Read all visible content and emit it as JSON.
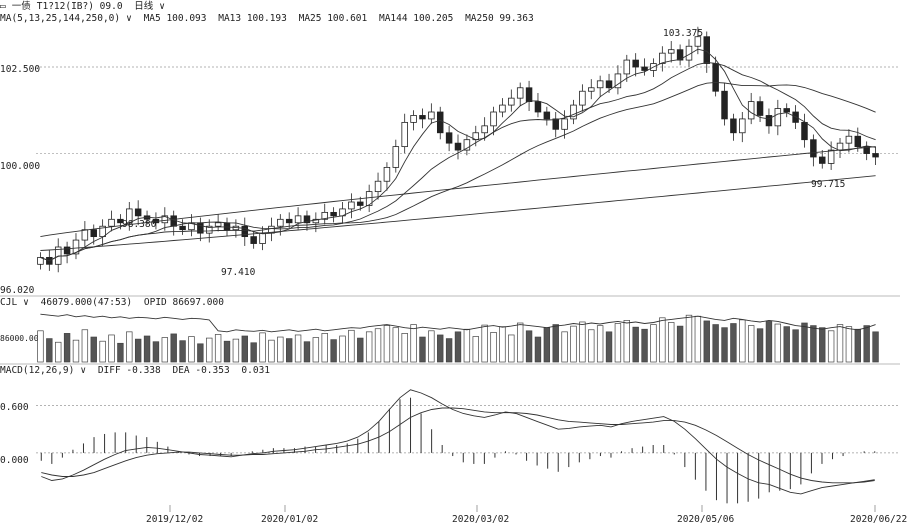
{
  "window": {
    "icon_glyph": "▭",
    "instrument": "一债",
    "instrument_detail": "T1?12(IB?) 09.0",
    "period_label": "日线",
    "chevron_glyph": "∨"
  },
  "main_header": {
    "ma_formula": "MA(5,13,25,144,250,0)",
    "ma5": "MA5 100.093",
    "ma13": "MA13 100.193",
    "ma25": "MA25 100.601",
    "ma144": "MA144 100.205",
    "ma250": "MA250 99.363"
  },
  "vol_header": {
    "name": "CJL",
    "cjl": "46079.000(47:53)",
    "opid": "OPID 86697.000"
  },
  "macd_header": {
    "name": "MACD(12,26,9)",
    "diff": "DIFF -0.338",
    "dea": "DEA -0.353",
    "macd": "0.031"
  },
  "axis_labels": {
    "main_high": "102.500",
    "main_mid": "100.000",
    "main_low": "96.020",
    "vol_mark": "86000.000",
    "macd_top": "0.600",
    "macd_zero": "0.000"
  },
  "annotations": {
    "peak": "103.375",
    "local_high": "98.380",
    "local_low_1": "97.410",
    "local_low_2": "99.715"
  },
  "colors": {
    "grid": "#9a9a9a",
    "candle": "#222222",
    "ma_line": "#333333",
    "text": "#222222"
  },
  "chart_data": {
    "type": "candlestick",
    "x_ticks": [
      "2019/12/02",
      "2020/01/02",
      "2020/03/02",
      "2020/05/06",
      "2020/06/22"
    ],
    "price_ylim": [
      96.0,
      103.8
    ],
    "price_gridlines": [
      102.5,
      100.0
    ],
    "macd_gridlines": [
      0.6,
      0.0
    ],
    "close_path": [
      97.0,
      96.8,
      97.3,
      97.1,
      97.5,
      97.8,
      97.6,
      97.9,
      98.1,
      98.0,
      98.4,
      98.2,
      98.1,
      98.0,
      98.2,
      97.9,
      97.8,
      98.0,
      97.7,
      97.9,
      98.0,
      97.8,
      97.9,
      97.6,
      97.4,
      97.7,
      97.9,
      98.1,
      98.0,
      98.2,
      98.0,
      98.1,
      98.3,
      98.2,
      98.4,
      98.6,
      98.5,
      98.9,
      99.2,
      99.6,
      100.2,
      100.9,
      101.1,
      101.0,
      101.2,
      100.6,
      100.3,
      100.1,
      100.4,
      100.6,
      100.8,
      101.2,
      101.4,
      101.6,
      101.9,
      101.5,
      101.2,
      101.0,
      100.7,
      101.0,
      101.4,
      101.8,
      101.9,
      102.1,
      101.9,
      102.3,
      102.7,
      102.5,
      102.4,
      102.6,
      102.9,
      103.0,
      102.7,
      103.1,
      103.375,
      102.6,
      101.8,
      101.0,
      100.6,
      101.0,
      101.5,
      101.1,
      100.8,
      101.3,
      101.2,
      100.9,
      100.4,
      99.9,
      99.715,
      100.1,
      100.3,
      100.5,
      100.2,
      100.0,
      99.9
    ],
    "annotated_points": [
      {
        "label": "98.380",
        "value": 98.38
      },
      {
        "label": "97.410",
        "value": 97.41
      },
      {
        "label": "103.375",
        "value": 103.375
      },
      {
        "label": "99.715",
        "value": 99.715
      }
    ],
    "volume_series": [
      60,
      45,
      38,
      55,
      42,
      62,
      48,
      40,
      52,
      36,
      58,
      44,
      50,
      39,
      47,
      54,
      41,
      49,
      35,
      46,
      53,
      40,
      44,
      50,
      37,
      56,
      42,
      48,
      45,
      52,
      39,
      47,
      55,
      43,
      50,
      61,
      46,
      58,
      64,
      70,
      66,
      55,
      72,
      48,
      60,
      52,
      45,
      58,
      63,
      49,
      71,
      57,
      68,
      52,
      75,
      60,
      48,
      66,
      72,
      58,
      69,
      77,
      62,
      70,
      58,
      74,
      80,
      67,
      63,
      72,
      85,
      76,
      69,
      90,
      88,
      79,
      72,
      66,
      74,
      81,
      70,
      64,
      78,
      73,
      68,
      62,
      75,
      70,
      66,
      60,
      72,
      68,
      63,
      70,
      58
    ],
    "oi_series": [
      92,
      90,
      88,
      91,
      87,
      89,
      86,
      88,
      85,
      87,
      84,
      86,
      85,
      83,
      86,
      84,
      82,
      84,
      83,
      81,
      60,
      58,
      62,
      60,
      59,
      61,
      58,
      60,
      62,
      59,
      61,
      63,
      60,
      62,
      64,
      66,
      65,
      68,
      70,
      72,
      69,
      66,
      64,
      67,
      65,
      63,
      66,
      64,
      62,
      65,
      68,
      70,
      67,
      69,
      72,
      70,
      68,
      66,
      69,
      71,
      74,
      72,
      75,
      73,
      76,
      78,
      75,
      77,
      74,
      76,
      80,
      82,
      84,
      86,
      88,
      85,
      82,
      80,
      84,
      82,
      79,
      77,
      80,
      78,
      74,
      70,
      68,
      65,
      63,
      66,
      68,
      64,
      62,
      66,
      72
    ],
    "macd_diff": [
      -0.3,
      -0.35,
      -0.33,
      -0.28,
      -0.22,
      -0.15,
      -0.08,
      -0.02,
      0.03,
      0.05,
      0.07,
      0.06,
      0.04,
      0.02,
      0.0,
      -0.02,
      -0.03,
      -0.04,
      -0.05,
      -0.03,
      -0.01,
      0.0,
      0.02,
      0.03,
      0.04,
      0.06,
      0.08,
      0.1,
      0.12,
      0.15,
      0.2,
      0.28,
      0.4,
      0.55,
      0.7,
      0.8,
      0.76,
      0.7,
      0.62,
      0.55,
      0.5,
      0.47,
      0.45,
      0.48,
      0.52,
      0.5,
      0.45,
      0.4,
      0.35,
      0.3,
      0.31,
      0.33,
      0.34,
      0.35,
      0.33,
      0.37,
      0.4,
      0.42,
      0.44,
      0.46,
      0.4,
      0.3,
      0.18,
      0.05,
      -0.08,
      -0.18,
      -0.26,
      -0.33,
      -0.38,
      -0.4,
      -0.45,
      -0.5,
      -0.52,
      -0.48,
      -0.44,
      -0.42,
      -0.4,
      -0.38,
      -0.36,
      -0.34
    ],
    "macd_dea": [
      -0.25,
      -0.28,
      -0.3,
      -0.3,
      -0.28,
      -0.25,
      -0.2,
      -0.15,
      -0.1,
      -0.06,
      -0.03,
      -0.01,
      0.0,
      0.01,
      0.01,
      0.0,
      -0.01,
      -0.02,
      -0.03,
      -0.03,
      -0.02,
      -0.02,
      -0.01,
      0.0,
      0.01,
      0.02,
      0.04,
      0.05,
      0.07,
      0.09,
      0.11,
      0.15,
      0.2,
      0.27,
      0.36,
      0.45,
      0.51,
      0.55,
      0.57,
      0.57,
      0.56,
      0.54,
      0.52,
      0.51,
      0.51,
      0.51,
      0.5,
      0.48,
      0.45,
      0.42,
      0.4,
      0.39,
      0.38,
      0.37,
      0.36,
      0.36,
      0.37,
      0.38,
      0.39,
      0.41,
      0.41,
      0.39,
      0.35,
      0.29,
      0.22,
      0.14,
      0.06,
      -0.02,
      -0.09,
      -0.15,
      -0.21,
      -0.27,
      -0.32,
      -0.35,
      -0.37,
      -0.38,
      -0.38,
      -0.38,
      -0.37,
      -0.35
    ],
    "macd_hist": [
      -0.1,
      -0.14,
      -0.06,
      0.04,
      0.12,
      0.2,
      0.24,
      0.26,
      0.26,
      0.22,
      0.2,
      0.14,
      0.08,
      0.02,
      -0.02,
      -0.04,
      -0.04,
      -0.04,
      -0.04,
      0.0,
      0.02,
      0.04,
      0.06,
      0.06,
      0.06,
      0.08,
      0.08,
      0.1,
      0.1,
      0.12,
      0.18,
      0.26,
      0.4,
      0.56,
      0.68,
      0.7,
      0.5,
      0.3,
      0.1,
      -0.04,
      -0.12,
      -0.14,
      -0.14,
      -0.06,
      0.02,
      -0.02,
      -0.1,
      -0.16,
      -0.2,
      -0.24,
      -0.18,
      -0.12,
      -0.08,
      -0.04,
      -0.06,
      0.02,
      0.06,
      0.08,
      0.1,
      0.1,
      -0.02,
      -0.18,
      -0.34,
      -0.48,
      -0.6,
      -0.64,
      -0.64,
      -0.62,
      -0.58,
      -0.5,
      -0.48,
      -0.46,
      -0.4,
      -0.26,
      -0.14,
      -0.08,
      -0.04,
      0.0,
      0.02,
      0.02
    ]
  }
}
